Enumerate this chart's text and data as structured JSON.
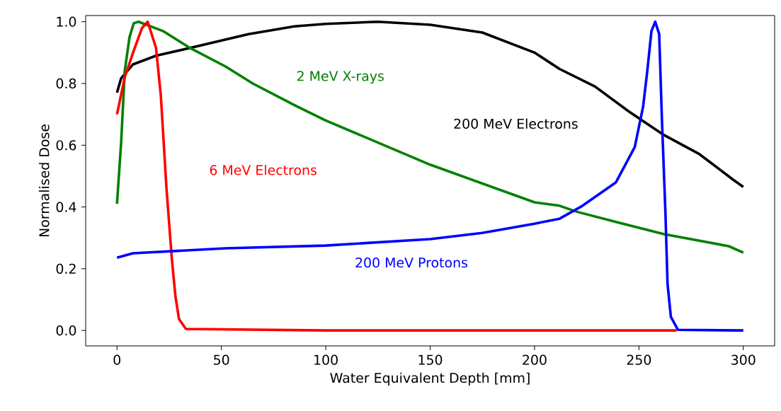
{
  "chart_data": {
    "type": "line",
    "xlabel": "Water Equivalent Depth [mm]",
    "ylabel": "Normalised Dose",
    "xlim": [
      -15,
      315
    ],
    "ylim": [
      -0.05,
      1.02
    ],
    "xticks": [
      0,
      50,
      100,
      150,
      200,
      250,
      300
    ],
    "yticks": [
      {
        "value": 0,
        "label": "0.0"
      },
      {
        "value": 0.2,
        "label": "0.2"
      },
      {
        "value": 0.4,
        "label": "0.4"
      },
      {
        "value": 0.6,
        "label": "0.6"
      },
      {
        "value": 0.8,
        "label": "0.8"
      },
      {
        "value": 1,
        "label": "1.0"
      }
    ],
    "grid": false,
    "legend": false,
    "marker": "none",
    "line_style": "solid",
    "series": [
      {
        "name": "200 MeV Electrons",
        "color": "#000000",
        "x": [
          0,
          2,
          7.7,
          18.7,
          35,
          63,
          85,
          100,
          125,
          150,
          175,
          200,
          212,
          229,
          245,
          262,
          279,
          295,
          300
        ],
        "values": [
          0.77,
          0.817,
          0.862,
          0.89,
          0.915,
          0.96,
          0.985,
          0.993,
          1.0,
          0.99,
          0.965,
          0.9,
          0.847,
          0.79,
          0.71,
          0.633,
          0.571,
          0.489,
          0.465
        ]
      },
      {
        "name": "2 MeV X-rays",
        "color": "#008000",
        "x": [
          0,
          2,
          3.7,
          6,
          8,
          10.3,
          22,
          35,
          52,
          65,
          85,
          100,
          150,
          200,
          212,
          220,
          240,
          262,
          293,
          300
        ],
        "values": [
          0.41,
          0.61,
          0.84,
          0.95,
          0.995,
          1.0,
          0.97,
          0.915,
          0.855,
          0.8,
          0.73,
          0.68,
          0.537,
          0.415,
          0.404,
          0.385,
          0.35,
          0.312,
          0.273,
          0.252
        ]
      },
      {
        "name": "6 MeV Electrons",
        "color": "#ff0000",
        "x": [
          0,
          3.7,
          7.7,
          12,
          14.7,
          18.7,
          21,
          23.7,
          26.3,
          28,
          29.7,
          33,
          100,
          200,
          268
        ],
        "values": [
          0.7,
          0.82,
          0.9,
          0.98,
          1.0,
          0.915,
          0.76,
          0.46,
          0.23,
          0.11,
          0.037,
          0.005,
          0,
          0,
          0
        ]
      },
      {
        "name": "200 MeV Protons",
        "color": "#0000ff",
        "x": [
          0,
          7.7,
          52,
          100,
          150,
          175,
          200,
          212,
          223,
          239,
          248,
          252,
          254,
          256,
          257.8,
          259.7,
          261,
          262.7,
          263.7,
          265.3,
          268.7,
          300
        ],
        "values": [
          0.236,
          0.25,
          0.266,
          0.275,
          0.296,
          0.316,
          0.346,
          0.362,
          0.404,
          0.48,
          0.594,
          0.725,
          0.84,
          0.97,
          1.0,
          0.96,
          0.686,
          0.38,
          0.151,
          0.044,
          0.002,
          0
        ]
      }
    ]
  }
}
